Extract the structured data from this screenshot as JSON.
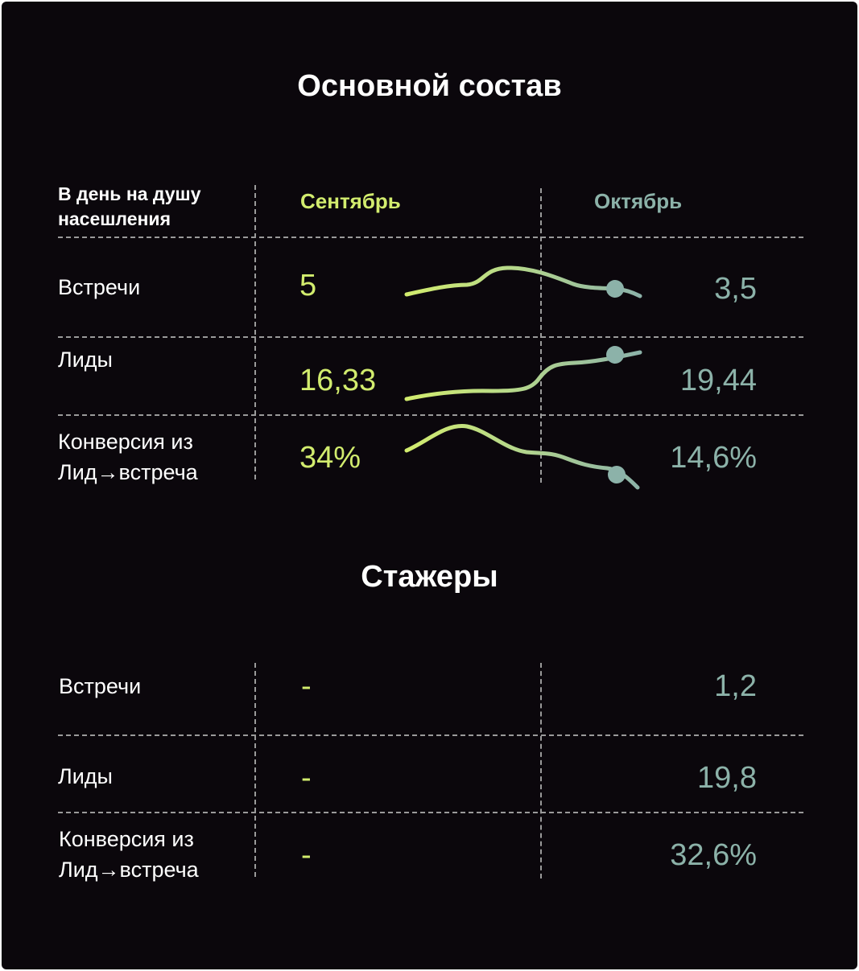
{
  "colors": {
    "background": "#0b070c",
    "september": "#d2ec6e",
    "october": "#8cb2a9",
    "text": "#ffffff"
  },
  "main_section": {
    "title": "Основной состав",
    "header_label": "В день на душу насешления",
    "col_september": "Сентябрь",
    "col_october": "Октябрь",
    "rows": [
      {
        "label": "Встречи",
        "september": "5",
        "october": "3,5"
      },
      {
        "label": "Лиды",
        "september": "16,33",
        "october": "19,44"
      },
      {
        "label": "Конверсия из Лид→встреча",
        "september": "34%",
        "october": "14,6%"
      }
    ]
  },
  "intern_section": {
    "title": "Стажеры",
    "rows": [
      {
        "label": "Встречи",
        "september": "-",
        "october": "1,2"
      },
      {
        "label": "Лиды",
        "september": "-",
        "october": "19,8"
      },
      {
        "label": "Конверсия из Лид→встреча",
        "september": "-",
        "october": "32,6%"
      }
    ]
  },
  "chart_data": {
    "type": "line",
    "title": "Основной состав",
    "categories": [
      "Сентябрь",
      "Октябрь"
    ],
    "series": [
      {
        "name": "Встречи",
        "values": [
          5,
          3.5
        ]
      },
      {
        "name": "Лиды",
        "values": [
          16.33,
          19.44
        ]
      },
      {
        "name": "Конверсия из Лид→встреча",
        "values": [
          34,
          14.6
        ]
      }
    ]
  }
}
